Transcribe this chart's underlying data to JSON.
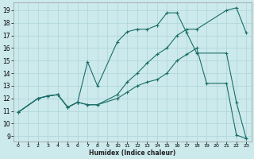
{
  "xlabel": "Humidex (Indice chaleur)",
  "bg_color": "#cce9ec",
  "grid_color": "#add4d8",
  "line_color": "#1a6e68",
  "xlim": [
    -0.5,
    23.5
  ],
  "ylim": [
    8.6,
    19.6
  ],
  "yticks": [
    9,
    10,
    11,
    12,
    13,
    14,
    15,
    16,
    17,
    18,
    19
  ],
  "xticks": [
    0,
    1,
    2,
    3,
    4,
    5,
    6,
    7,
    8,
    9,
    10,
    11,
    12,
    13,
    14,
    15,
    16,
    17,
    18,
    19,
    20,
    21,
    22,
    23
  ],
  "line1_x": [
    0,
    2,
    3,
    4,
    5,
    6,
    7,
    8,
    10,
    11,
    12,
    13,
    14,
    15,
    16,
    17,
    18,
    21,
    22,
    23
  ],
  "line1_y": [
    10.9,
    12.0,
    12.2,
    12.3,
    11.3,
    11.7,
    14.9,
    13.0,
    16.5,
    17.3,
    17.5,
    17.5,
    17.8,
    18.8,
    18.8,
    17.2,
    15.6,
    15.6,
    11.7,
    8.8
  ],
  "line2_x": [
    0,
    2,
    3,
    4,
    5,
    6,
    7,
    8,
    10,
    11,
    12,
    13,
    14,
    15,
    16,
    17,
    18,
    21,
    22,
    23
  ],
  "line2_y": [
    10.9,
    12.0,
    12.2,
    12.3,
    11.3,
    11.7,
    11.5,
    11.5,
    12.3,
    13.3,
    14.0,
    14.8,
    15.5,
    16.0,
    17.0,
    17.5,
    17.5,
    19.0,
    19.2,
    17.2
  ],
  "line3_x": [
    0,
    2,
    3,
    4,
    5,
    6,
    7,
    8,
    10,
    11,
    12,
    13,
    14,
    15,
    16,
    17,
    18,
    19,
    21,
    22,
    23
  ],
  "line3_y": [
    10.9,
    12.0,
    12.2,
    12.3,
    11.3,
    11.7,
    11.5,
    11.5,
    12.0,
    12.5,
    13.0,
    13.3,
    13.5,
    14.0,
    15.0,
    15.5,
    16.0,
    13.2,
    13.2,
    9.1,
    8.8
  ]
}
